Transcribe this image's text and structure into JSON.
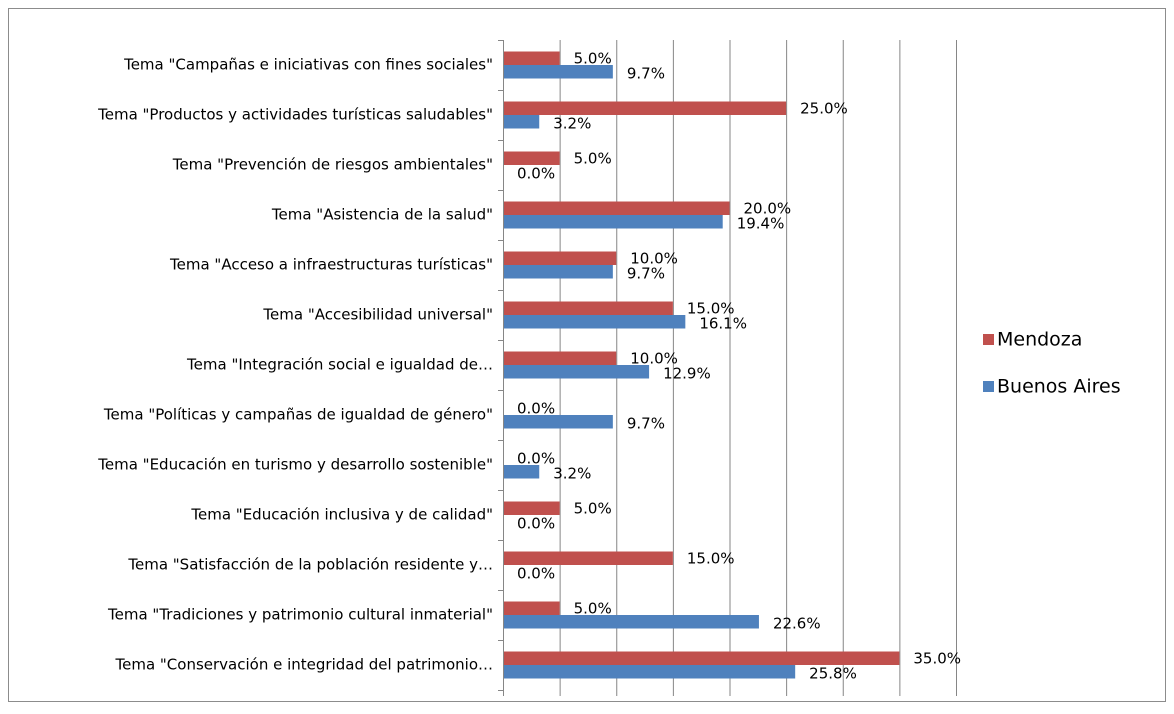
{
  "chart_data": {
    "type": "bar",
    "orientation": "horizontal",
    "categories": [
      "Tema \"Campañas e iniciativas con fines sociales\"",
      "Tema \"Productos y actividades turísticas saludables\"",
      "Tema \"Prevención de riesgos ambientales\"",
      "Tema \"Asistencia de la salud\"",
      "Tema \"Acceso a infraestructuras turísticas\"",
      "Tema \"Accesibilidad universal\"",
      "Tema \"Integración social e igualdad de…",
      "Tema \"Políticas y campañas de igualdad de género\"",
      "Tema \"Educación en turismo y desarrollo sostenible\"",
      "Tema \"Educación inclusiva y de calidad\"",
      "Tema \"Satisfacción de la población residente y…",
      "Tema \"Tradiciones y patrimonio cultural inmaterial\"",
      "Tema \"Conservación e integridad del patrimonio…"
    ],
    "series": [
      {
        "name": "Mendoza",
        "color": "#c0504d",
        "values": [
          5,
          25,
          5,
          20,
          10,
          15,
          10,
          0,
          0,
          5,
          15,
          5,
          35
        ],
        "value_labels": [
          "5.0%",
          "25.0%",
          "5.0%",
          "20.0%",
          "10.0%",
          "15.0%",
          "10.0%",
          "0.0%",
          "0.0%",
          "5.0%",
          "15.0%",
          "5.0%",
          "35.0%"
        ]
      },
      {
        "name": "Buenos Aires",
        "color": "#4f81bd",
        "values": [
          9.7,
          3.2,
          0,
          19.4,
          9.7,
          16.1,
          12.9,
          9.7,
          3.2,
          0,
          0,
          22.6,
          25.8
        ],
        "value_labels": [
          "9.7%",
          "3.2%",
          "0.0%",
          "19.4%",
          "9.7%",
          "16.1%",
          "12.9%",
          "9.7%",
          "3.2%",
          "0.0%",
          "0.0%",
          "22.6%",
          "25.8%"
        ]
      }
    ],
    "xlim": [
      0,
      40
    ],
    "xticks": [
      0,
      5,
      10,
      15,
      20,
      25,
      30,
      35,
      40
    ],
    "grid": true,
    "legend": "right"
  }
}
